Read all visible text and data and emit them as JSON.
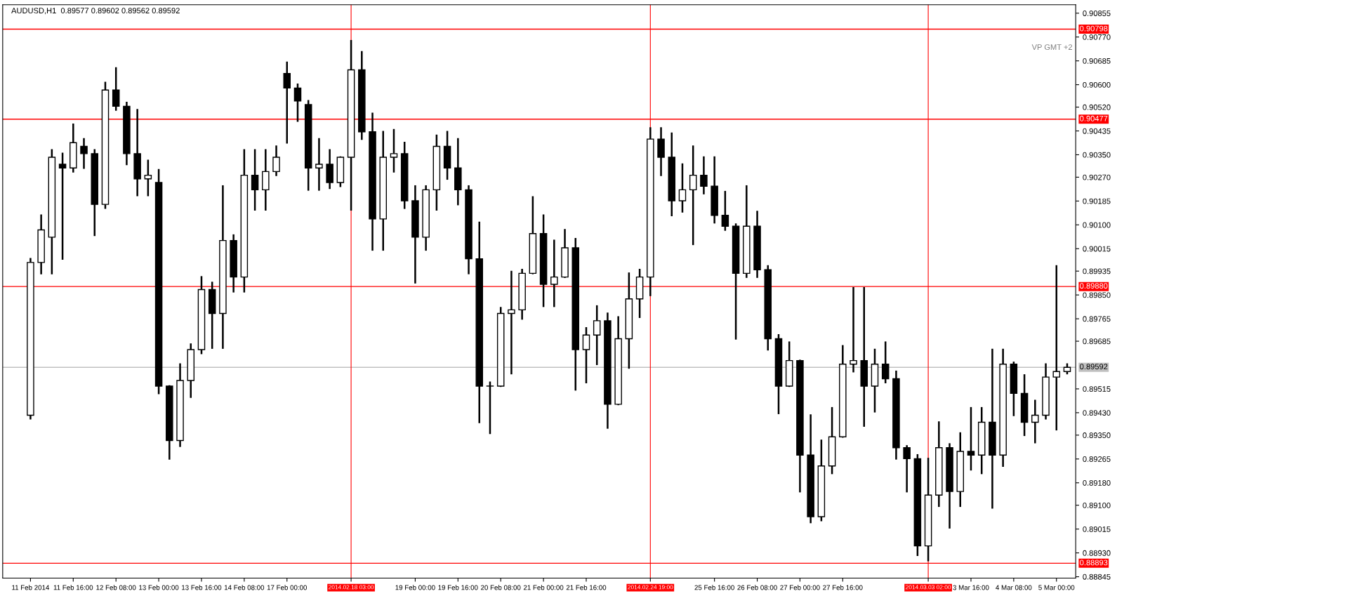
{
  "chart_data": {
    "type": "candlestick",
    "title": "AUDUSD,H1  0.89577 0.89602 0.89562 0.89592",
    "annotations": [
      "VP GMT +2"
    ],
    "categories": [
      "11 Feb 2014",
      null,
      null,
      null,
      "11 Feb 16:00",
      null,
      null,
      null,
      "12 Feb 08:00",
      null,
      null,
      null,
      "13 Feb 00:00",
      null,
      null,
      null,
      "13 Feb 16:00",
      null,
      null,
      null,
      "14 Feb 08:00",
      null,
      null,
      null,
      "17 Feb 00:00",
      null,
      null,
      null,
      null,
      null,
      "2014.02.18 03:00",
      null,
      null,
      null,
      null,
      null,
      "19 Feb 00:00",
      null,
      null,
      null,
      "19 Feb 16:00",
      null,
      null,
      null,
      "20 Feb 08:00",
      null,
      null,
      null,
      "21 Feb 00:00",
      null,
      null,
      null,
      "21 Feb 16:00",
      null,
      null,
      null,
      null,
      null,
      "2014.02.24 19:00",
      null,
      null,
      null,
      null,
      null,
      "25 Feb 16:00",
      null,
      null,
      null,
      "26 Feb 08:00",
      null,
      null,
      null,
      "27 Feb 00:00",
      null,
      null,
      null,
      "27 Feb 16:00",
      null,
      null,
      null,
      null,
      null,
      null,
      null,
      "2014.03.03 02:00",
      null,
      null,
      null,
      "3 Mar 16:00",
      null,
      null,
      null,
      "4 Mar 08:00",
      null,
      null,
      null,
      "5 Mar 00:00",
      null
    ],
    "ohlc": [
      [
        0.89421,
        0.89979,
        0.89409,
        0.89966
      ],
      [
        0.89966,
        0.90134,
        0.89927,
        0.90082
      ],
      [
        0.90056,
        0.90367,
        0.89927,
        0.90341
      ],
      [
        0.90316,
        0.90354,
        0.89979,
        0.90303
      ],
      [
        0.90303,
        0.90458,
        0.9029,
        0.90393
      ],
      [
        0.9038,
        0.90406,
        0.90303,
        0.90354
      ],
      [
        0.90354,
        0.90367,
        0.90063,
        0.90173
      ],
      [
        0.90173,
        0.90607,
        0.9016,
        0.90581
      ],
      [
        0.90581,
        0.90659,
        0.9051,
        0.90523
      ],
      [
        0.90523,
        0.90536,
        0.90316,
        0.90354
      ],
      [
        0.90354,
        0.9051,
        0.90205,
        0.90264
      ],
      [
        0.90264,
        0.90329,
        0.90205,
        0.90277
      ],
      [
        0.90251,
        0.90296,
        0.89499,
        0.89525
      ],
      [
        0.89525,
        0.89525,
        0.89266,
        0.89331
      ],
      [
        0.89331,
        0.89603,
        0.89311,
        0.89545
      ],
      [
        0.89545,
        0.89674,
        0.89486,
        0.89655
      ],
      [
        0.89655,
        0.89914,
        0.89642,
        0.89869
      ],
      [
        0.89869,
        0.89894,
        0.89661,
        0.89784
      ],
      [
        0.89784,
        0.90238,
        0.89661,
        0.90044
      ],
      [
        0.90044,
        0.90063,
        0.89862,
        0.89914
      ],
      [
        0.89914,
        0.90367,
        0.89862,
        0.90277
      ],
      [
        0.90277,
        0.90367,
        0.90154,
        0.90225
      ],
      [
        0.90225,
        0.90367,
        0.90154,
        0.9029
      ],
      [
        0.9029,
        0.9038,
        0.90277,
        0.90341
      ],
      [
        0.9064,
        0.90679,
        0.90393,
        0.90588
      ],
      [
        0.90588,
        0.90601,
        0.90471,
        0.90542
      ],
      [
        0.90529,
        0.90542,
        0.90225,
        0.90303
      ],
      [
        0.90303,
        0.90406,
        0.90225,
        0.90316
      ],
      [
        0.90316,
        0.90367,
        0.90231,
        0.90251
      ],
      [
        0.90251,
        0.90341,
        0.90238,
        0.90341
      ],
      [
        0.90341,
        0.90756,
        0.90154,
        0.90653
      ],
      [
        0.90653,
        0.90717,
        0.90406,
        0.90432
      ],
      [
        0.90432,
        0.90497,
        0.90011,
        0.90121
      ],
      [
        0.90121,
        0.90432,
        0.90011,
        0.90341
      ],
      [
        0.90341,
        0.90439,
        0.9029,
        0.90354
      ],
      [
        0.90354,
        0.90393,
        0.9016,
        0.90186
      ],
      [
        0.90186,
        0.90238,
        0.89894,
        0.90056
      ],
      [
        0.90056,
        0.90238,
        0.90011,
        0.90225
      ],
      [
        0.90225,
        0.90419,
        0.90154,
        0.9038
      ],
      [
        0.9038,
        0.90432,
        0.90264,
        0.90303
      ],
      [
        0.90303,
        0.90406,
        0.90173,
        0.90225
      ],
      [
        0.90225,
        0.90238,
        0.89927,
        0.89979
      ],
      [
        0.89979,
        0.90108,
        0.89396,
        0.89525
      ],
      [
        0.89525,
        0.89538,
        0.89357,
        0.89525
      ],
      [
        0.89525,
        0.89804,
        0.89525,
        0.89784
      ],
      [
        0.89784,
        0.89933,
        0.8957,
        0.89797
      ],
      [
        0.89797,
        0.8994,
        0.89765,
        0.89927
      ],
      [
        0.89927,
        0.90199,
        0.89927,
        0.90069
      ],
      [
        0.90069,
        0.90134,
        0.8981,
        0.89888
      ],
      [
        0.89888,
        0.90044,
        0.8981,
        0.89914
      ],
      [
        0.89914,
        0.90082,
        0.89914,
        0.90018
      ],
      [
        0.90018,
        0.9005,
        0.89512,
        0.89655
      ],
      [
        0.89655,
        0.89732,
        0.89538,
        0.89707
      ],
      [
        0.89707,
        0.8981,
        0.89603,
        0.89758
      ],
      [
        0.89758,
        0.89784,
        0.89376,
        0.8946
      ],
      [
        0.8946,
        0.89771,
        0.8946,
        0.89694
      ],
      [
        0.89694,
        0.89927,
        0.8959,
        0.89836
      ],
      [
        0.89836,
        0.8994,
        0.89771,
        0.89914
      ],
      [
        0.89914,
        0.90445,
        0.89849,
        0.90406
      ],
      [
        0.90406,
        0.90445,
        0.90277,
        0.90341
      ],
      [
        0.90341,
        0.90426,
        0.90134,
        0.90186
      ],
      [
        0.90186,
        0.90316,
        0.90147,
        0.90225
      ],
      [
        0.90225,
        0.9038,
        0.90031,
        0.90277
      ],
      [
        0.90277,
        0.90341,
        0.90212,
        0.90238
      ],
      [
        0.90238,
        0.90341,
        0.90108,
        0.90134
      ],
      [
        0.90134,
        0.90218,
        0.90082,
        0.90095
      ],
      [
        0.90095,
        0.90102,
        0.89694,
        0.89927
      ],
      [
        0.89927,
        0.90238,
        0.89914,
        0.90095
      ],
      [
        0.90095,
        0.90147,
        0.89914,
        0.8994
      ],
      [
        0.8994,
        0.89953,
        0.89655,
        0.89694
      ],
      [
        0.89694,
        0.89707,
        0.89428,
        0.89525
      ],
      [
        0.89525,
        0.89681,
        0.89525,
        0.89616
      ],
      [
        0.89616,
        0.89616,
        0.89149,
        0.89279
      ],
      [
        0.89279,
        0.89421,
        0.89039,
        0.89059
      ],
      [
        0.89059,
        0.89331,
        0.89046,
        0.8924
      ],
      [
        0.8924,
        0.89447,
        0.89214,
        0.89344
      ],
      [
        0.89344,
        0.89668,
        0.89344,
        0.89603
      ],
      [
        0.89603,
        0.89875,
        0.89577,
        0.89616
      ],
      [
        0.89616,
        0.89875,
        0.89383,
        0.89525
      ],
      [
        0.89525,
        0.89655,
        0.89434,
        0.89603
      ],
      [
        0.89603,
        0.89681,
        0.89538,
        0.89551
      ],
      [
        0.89551,
        0.89577,
        0.89266,
        0.89305
      ],
      [
        0.89305,
        0.89311,
        0.89149,
        0.89266
      ],
      [
        0.89266,
        0.89279,
        0.88922,
        0.88955
      ],
      [
        0.88955,
        0.89266,
        0.88903,
        0.89136
      ],
      [
        0.89136,
        0.89396,
        0.89097,
        0.89305
      ],
      [
        0.89305,
        0.89318,
        0.8902,
        0.89149
      ],
      [
        0.89149,
        0.89357,
        0.89097,
        0.89292
      ],
      [
        0.89292,
        0.89447,
        0.89227,
        0.89279
      ],
      [
        0.89279,
        0.89447,
        0.89214,
        0.89396
      ],
      [
        0.89396,
        0.89655,
        0.89091,
        0.89279
      ],
      [
        0.89279,
        0.89655,
        0.8924,
        0.89603
      ],
      [
        0.89603,
        0.89609,
        0.89421,
        0.89499
      ],
      [
        0.89499,
        0.89564,
        0.8935,
        0.89396
      ],
      [
        0.89396,
        0.89473,
        0.89324,
        0.89421
      ],
      [
        0.89421,
        0.89603,
        0.89409,
        0.89557
      ],
      [
        0.89557,
        0.89953,
        0.8937,
        0.89577
      ],
      [
        0.89577,
        0.89603,
        0.8957,
        0.89592
      ]
    ],
    "ylim": [
      0.8884,
      0.90885
    ],
    "yticks": [
      {
        "value": 0.90855,
        "label": "0.90855"
      },
      {
        "value": 0.9077,
        "label": "0.90770"
      },
      {
        "value": 0.90685,
        "label": "0.90685"
      },
      {
        "value": 0.906,
        "label": "0.90600"
      },
      {
        "value": 0.9052,
        "label": "0.90520"
      },
      {
        "value": 0.90435,
        "label": "0.90435"
      },
      {
        "value": 0.9035,
        "label": "0.90350"
      },
      {
        "value": 0.9027,
        "label": "0.90270"
      },
      {
        "value": 0.90185,
        "label": "0.90185"
      },
      {
        "value": 0.901,
        "label": "0.90100"
      },
      {
        "value": 0.90015,
        "label": "0.90015"
      },
      {
        "value": 0.89935,
        "label": "0.89935"
      },
      {
        "value": 0.8985,
        "label": "0.89850"
      },
      {
        "value": 0.89765,
        "label": "0.89765"
      },
      {
        "value": 0.89685,
        "label": "0.89685"
      },
      {
        "value": 0.89515,
        "label": "0.89515"
      },
      {
        "value": 0.8943,
        "label": "0.89430"
      },
      {
        "value": 0.8935,
        "label": "0.89350"
      },
      {
        "value": 0.89265,
        "label": "0.89265"
      },
      {
        "value": 0.8918,
        "label": "0.89180"
      },
      {
        "value": 0.891,
        "label": "0.89100"
      },
      {
        "value": 0.89015,
        "label": "0.89015"
      },
      {
        "value": 0.8893,
        "label": "0.88930"
      },
      {
        "value": 0.88845,
        "label": "0.88845"
      }
    ],
    "ref_lines": [
      {
        "axis": "y",
        "value": 0.90798,
        "label": "0.90798",
        "color": "#ff0000"
      },
      {
        "axis": "y",
        "value": 0.90477,
        "label": "0.90477",
        "color": "#ff0000"
      },
      {
        "axis": "y",
        "value": 0.8988,
        "label": "0.89880",
        "color": "#ff0000"
      },
      {
        "axis": "y",
        "value": 0.88893,
        "label": "0.88893",
        "color": "#ff0000"
      },
      {
        "axis": "y",
        "value": 0.89592,
        "label": "0.89592",
        "color": "#c0c0c0"
      },
      {
        "axis": "x",
        "value": "2014.02.18 03:00",
        "color": "#ff0000"
      },
      {
        "axis": "x",
        "value": "2014.02.24 19:00",
        "color": "#ff0000"
      },
      {
        "axis": "x",
        "value": "2014.03.03 02:00",
        "color": "#ff0000"
      }
    ],
    "grid": false
  }
}
